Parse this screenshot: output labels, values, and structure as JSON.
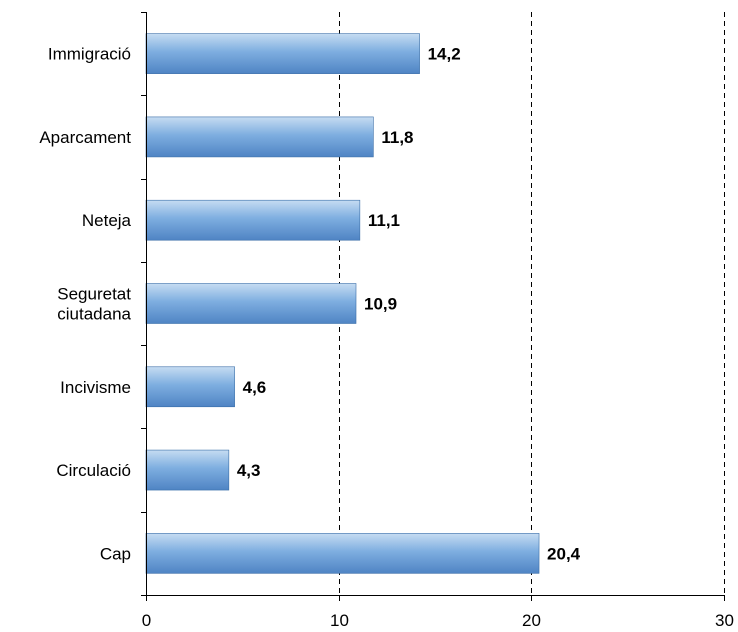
{
  "chart_data": {
    "type": "bar",
    "orientation": "horizontal",
    "categories": [
      [
        "Immigració"
      ],
      [
        "Aparcament"
      ],
      [
        "Neteja"
      ],
      [
        "Seguretat",
        "ciutadana"
      ],
      [
        "Incivisme"
      ],
      [
        "Circulació"
      ],
      [
        "Cap"
      ]
    ],
    "values": [
      14.2,
      11.8,
      11.1,
      10.9,
      4.6,
      4.3,
      20.4
    ],
    "value_labels": [
      "14,2",
      "11,8",
      "11,1",
      "10,9",
      "4,6",
      "4,3",
      "20,4"
    ],
    "x_ticks": [
      0,
      10,
      20,
      30
    ],
    "x_tick_labels": [
      "0",
      "10",
      "20",
      "30"
    ],
    "xlim": [
      0,
      30
    ],
    "grid": "vertical dashed",
    "legend": "none",
    "title": "",
    "xlabel": "",
    "ylabel": "",
    "colors": {
      "bar_light": "#c6dcf2",
      "bar_dark": "#4f84c4",
      "bar_outline": "#3a6ea8",
      "axis": "#000000",
      "grid": "#000000"
    }
  }
}
